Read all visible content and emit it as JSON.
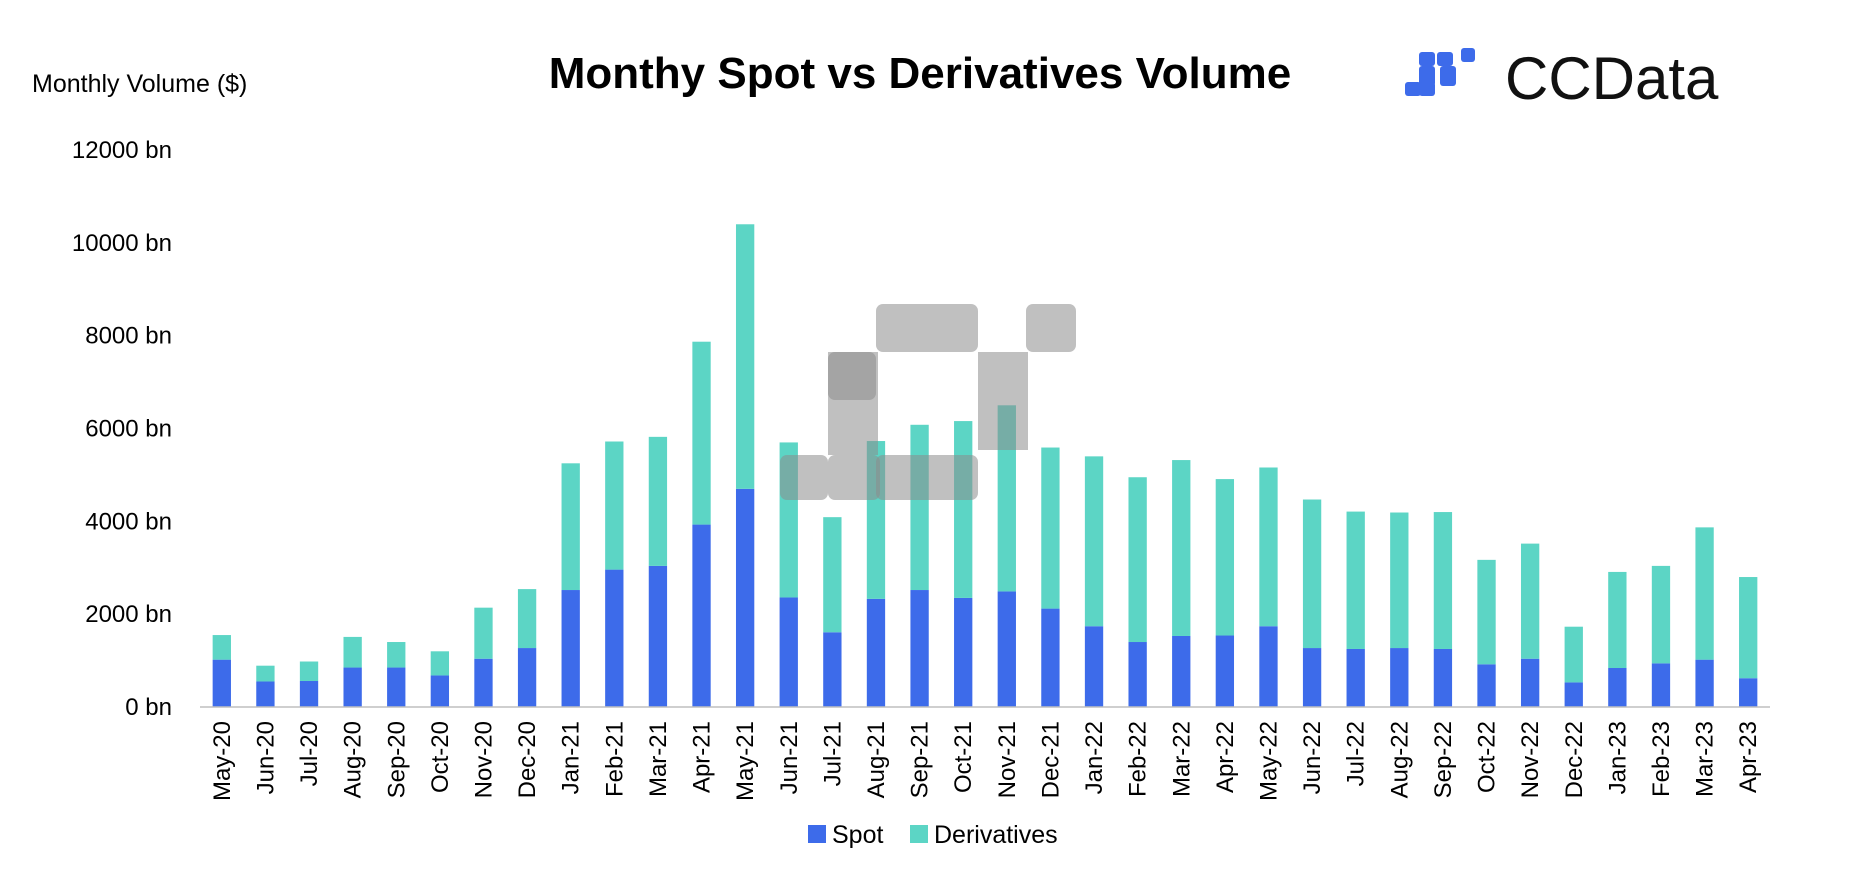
{
  "chart_data": {
    "type": "bar",
    "stacked": true,
    "title": "Monthy Spot vs Derivatives Volume",
    "ylabel": "Monthly Volume ($)",
    "ylim": [
      0,
      12000
    ],
    "yticks": [
      0,
      2000,
      4000,
      6000,
      8000,
      10000,
      12000
    ],
    "ytick_suffix": " bn",
    "grid": false,
    "legend_position": "bottom-center",
    "categories": [
      "May-20",
      "Jun-20",
      "Jul-20",
      "Aug-20",
      "Sep-20",
      "Oct-20",
      "Nov-20",
      "Dec-20",
      "Jan-21",
      "Feb-21",
      "Mar-21",
      "Apr-21",
      "May-21",
      "Jun-21",
      "Jul-21",
      "Aug-21",
      "Sep-21",
      "Oct-21",
      "Nov-21",
      "Dec-21",
      "Jan-22",
      "Feb-22",
      "Mar-22",
      "Apr-22",
      "May-22",
      "Jun-22",
      "Jul-22",
      "Aug-22",
      "Sep-22",
      "Oct-22",
      "Nov-22",
      "Dec-22",
      "Jan-23",
      "Feb-23",
      "Mar-23",
      "Apr-23"
    ],
    "series": [
      {
        "name": "Spot",
        "color": "#3D6BEA",
        "values": [
          1020,
          550,
          560,
          850,
          850,
          680,
          1040,
          1270,
          2520,
          2960,
          3040,
          3930,
          4700,
          2360,
          1610,
          2330,
          2520,
          2350,
          2490,
          2120,
          1740,
          1400,
          1530,
          1540,
          1740,
          1270,
          1250,
          1270,
          1250,
          920,
          1040,
          530,
          840,
          940,
          1020,
          620
        ]
      },
      {
        "name": "Derivatives",
        "color": "#5CD5C5",
        "values": [
          530,
          340,
          420,
          660,
          550,
          520,
          1100,
          1270,
          2730,
          2760,
          2780,
          3940,
          5700,
          3340,
          2480,
          3400,
          3560,
          3810,
          4010,
          3470,
          3660,
          3550,
          3790,
          3370,
          3420,
          3200,
          2960,
          2920,
          2950,
          2250,
          2480,
          1200,
          2070,
          2100,
          2850,
          2180
        ]
      }
    ]
  },
  "branding": {
    "logo_text": "CCData",
    "logo_color": "#3D6BEA"
  }
}
